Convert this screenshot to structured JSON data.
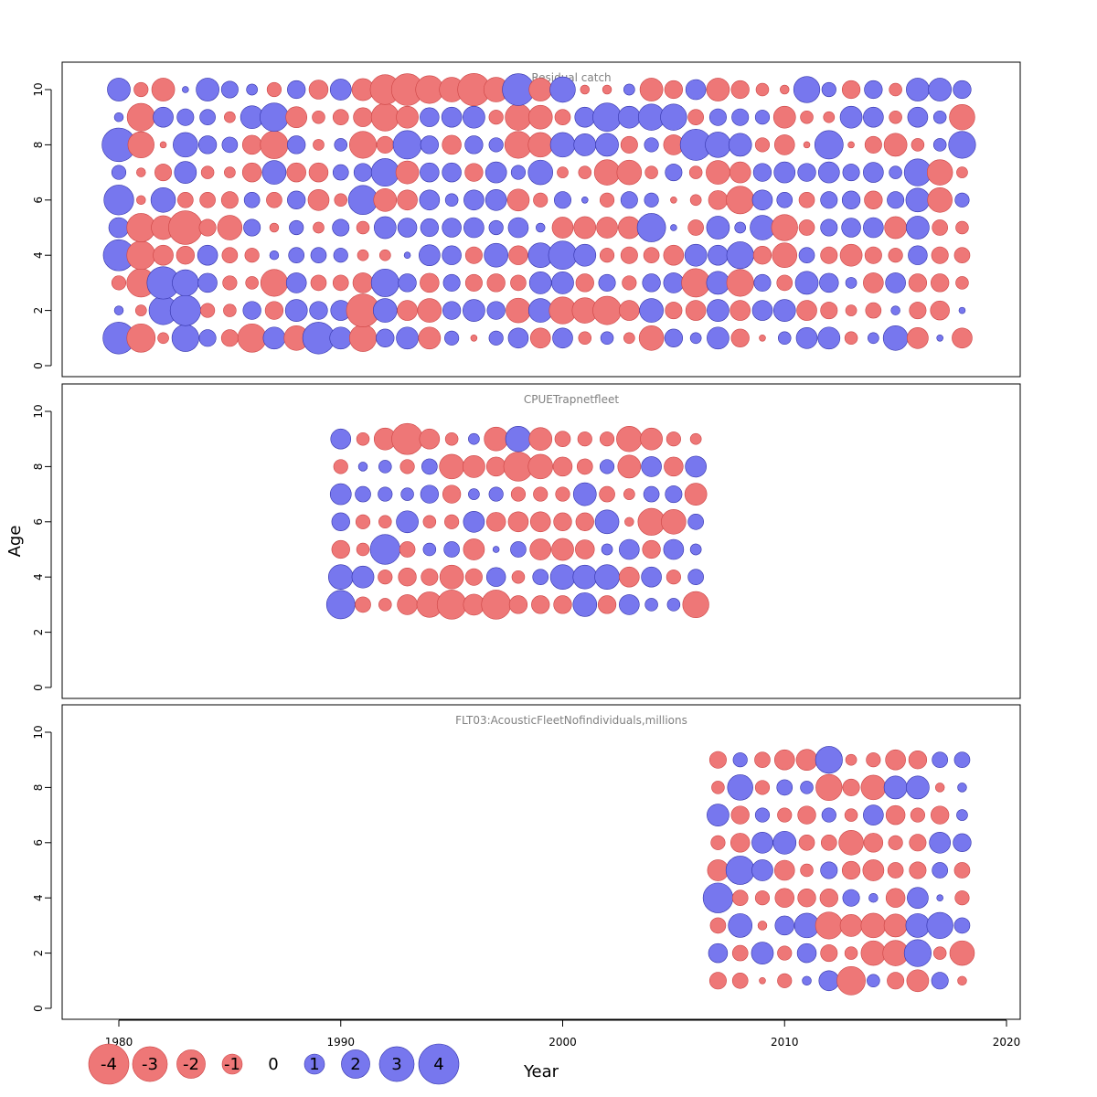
{
  "chart_data": {
    "type": "scatter",
    "subtype": "bubble-residual",
    "xlabel": "Year",
    "ylabel": "Age",
    "xlim": [
      1979,
      2020
    ],
    "ylim": [
      0,
      11
    ],
    "x_ticks": [
      1980,
      1990,
      2000,
      2010,
      2020
    ],
    "y_ticks": [
      0,
      2,
      4,
      6,
      8,
      10
    ],
    "colors": {
      "positive": "#7777ee",
      "negative": "#ee7777",
      "positive_stroke": "#3333aa",
      "negative_stroke": "#cc4444"
    },
    "legend": {
      "values": [
        -4,
        -3,
        -2,
        -1,
        0,
        1,
        2,
        3,
        4
      ],
      "labels": [
        "-4",
        "-3",
        "-2",
        "-1",
        "0",
        "1",
        "2",
        "3",
        "4"
      ],
      "placement": "bottom-left"
    },
    "panels": [
      {
        "name": "Residual catch",
        "years": [
          1980,
          1981,
          1982,
          1983,
          1984,
          1985,
          1986,
          1987,
          1988,
          1989,
          1990,
          1991,
          1992,
          1993,
          1994,
          1995,
          1996,
          1997,
          1998,
          1999,
          2000,
          2001,
          2002,
          2003,
          2004,
          2005,
          2006,
          2007,
          2008,
          2009,
          2010,
          2011,
          2012,
          2013,
          2014,
          2015,
          2016,
          2017,
          2018
        ],
        "ages": [
          1,
          2,
          3,
          4,
          5,
          6,
          7,
          8,
          9,
          10
        ],
        "residuals": [
          [
            2.5,
            -2,
            -0.3,
            1.8,
            0.7,
            -0.7,
            -2,
            1.2,
            -1.5,
            2.5,
            1.2,
            -1.8,
            0.8,
            1.2,
            -1.2,
            0.5,
            -0.1,
            0.5,
            1,
            -1,
            1,
            -0.4,
            0.4,
            -0.3,
            -1.5,
            0.8,
            0.3,
            1.2,
            -0.8,
            -0.1,
            0.4,
            1.1,
            1.2,
            -0.4,
            0.3,
            1.5,
            -1.1,
            0.1,
            -1
          ],
          [
            0.2,
            -0.3,
            2,
            2.3,
            -0.5,
            -0.4,
            0.8,
            -0.8,
            1.2,
            0.8,
            1,
            -2.7,
            1.4,
            -1,
            -1.4,
            0.8,
            1.2,
            0.8,
            -1.5,
            1.4,
            -1.8,
            -1.6,
            -2,
            -1,
            1.4,
            -0.7,
            -1,
            1.2,
            -1,
            1,
            1.2,
            -1,
            -0.7,
            -0.3,
            -0.6,
            0.2,
            -0.7,
            -0.9,
            0.1
          ],
          [
            -0.5,
            -2,
            2.6,
            1.7,
            0.9,
            -0.5,
            -0.4,
            -1.8,
            1,
            -0.6,
            -0.6,
            -1,
            1.9,
            0.8,
            -0.9,
            0.7,
            -0.7,
            -0.8,
            -0.6,
            1.2,
            1.2,
            -0.8,
            0.7,
            -0.5,
            0.8,
            1,
            -2,
            1.3,
            -1.8,
            0.7,
            -0.6,
            1.3,
            0.9,
            0.3,
            -1,
            1,
            -0.8,
            -0.8,
            -0.4
          ],
          [
            2.4,
            -2,
            -1,
            -0.8,
            1,
            -0.6,
            -0.5,
            0.2,
            0.6,
            0.6,
            0.5,
            -0.3,
            -0.3,
            0.1,
            1.1,
            0.9,
            -0.7,
            1.4,
            -0.9,
            1.5,
            2,
            1.2,
            -0.5,
            -0.7,
            -0.6,
            -1,
            1.2,
            1,
            1.8,
            -0.8,
            -1.5,
            0.6,
            -0.7,
            -1.2,
            -0.7,
            -0.5,
            0.9,
            -0.7,
            -0.6
          ],
          [
            1,
            -2,
            -1.4,
            -2.8,
            -0.7,
            -1.5,
            0.7,
            -0.2,
            0.5,
            -0.3,
            0.7,
            -0.4,
            1.2,
            0.9,
            0.8,
            0.9,
            1,
            0.5,
            1,
            0.2,
            -1.1,
            -1.2,
            -1.1,
            -1.2,
            2,
            0.1,
            -0.6,
            1.3,
            0.3,
            1.5,
            -1.7,
            -0.6,
            0.7,
            0.9,
            1,
            -1.2,
            1.3,
            -0.6,
            -0.4
          ],
          [
            2.2,
            -0.2,
            1.5,
            -0.6,
            -0.6,
            -0.7,
            0.6,
            -0.6,
            0.8,
            -1.1,
            -0.4,
            2.1,
            -1.3,
            -1,
            1,
            0.4,
            1,
            1.1,
            -1.2,
            -0.5,
            0.7,
            0.1,
            -0.5,
            0.7,
            0.5,
            -0.1,
            -0.3,
            -0.9,
            -1.9,
            1,
            0.6,
            -0.6,
            0.7,
            0.8,
            -0.8,
            0.7,
            1.4,
            -1.5,
            0.5
          ],
          [
            0.5,
            -0.2,
            -0.7,
            1.2,
            -0.4,
            -0.3,
            -0.9,
            1.4,
            -0.9,
            -0.9,
            0.6,
            0.8,
            1.9,
            -1.3,
            0.9,
            0.9,
            -0.8,
            1.1,
            0.5,
            1.5,
            -0.3,
            -0.4,
            -1.6,
            -1.5,
            -0.4,
            0.7,
            -0.4,
            -1.4,
            -1.1,
            0.8,
            1.1,
            0.8,
            1.1,
            0.7,
            1,
            0.4,
            1.8,
            -1.6,
            -0.3
          ],
          [
            2.8,
            -1.7,
            -0.1,
            1.5,
            0.8,
            0.6,
            -0.9,
            -1.9,
            0.8,
            -0.3,
            0.4,
            -1.8,
            -0.7,
            2,
            0.8,
            -0.9,
            0.8,
            0.5,
            -1.8,
            -1.5,
            1.5,
            1.2,
            1.3,
            -0.7,
            0.5,
            -1,
            2.4,
            1.6,
            1.3,
            -0.5,
            -1,
            -0.1,
            2,
            -0.1,
            -0.7,
            -1.3,
            -0.4,
            0.4,
            1.8
          ],
          [
            0.2,
            -1.9,
            1,
            0.7,
            0.6,
            -0.3,
            1.3,
            2,
            -1.1,
            -0.4,
            -0.6,
            -0.9,
            -1.9,
            -1.2,
            0.9,
            1,
            1.2,
            -0.5,
            -1.7,
            -1.4,
            -0.6,
            1,
            2,
            1.2,
            1.7,
            1.7,
            -0.6,
            0.7,
            0.7,
            0.5,
            -1.2,
            -0.4,
            -0.3,
            1.2,
            1,
            -0.4,
            1,
            0.4,
            -1.6
          ],
          [
            1.3,
            -0.5,
            -1.3,
            0.1,
            1.3,
            0.7,
            0.3,
            -0.5,
            0.8,
            -0.9,
            1.1,
            -1.2,
            -2.2,
            -2.5,
            -1.9,
            -1.5,
            -2.6,
            -1.5,
            2.5,
            -1.3,
            1.6,
            -0.2,
            -0.2,
            0.3,
            -1.3,
            -0.8,
            1,
            -1.3,
            -0.8,
            -0.4,
            -0.2,
            1.7,
            0.5,
            -0.8,
            0.8,
            -0.4,
            1.3,
            1.3,
            0.8
          ]
        ]
      },
      {
        "name": "CPUETrapnetfleet",
        "years": [
          1990,
          1991,
          1992,
          1993,
          1994,
          1995,
          1996,
          1997,
          1998,
          1999,
          2000,
          2001,
          2002,
          2003,
          2004,
          2005,
          2006
        ],
        "ages": [
          3,
          4,
          5,
          6,
          7,
          8,
          9
        ],
        "residuals": [
          [
            2,
            -0.6,
            -0.4,
            -1,
            -1.6,
            -2.1,
            -1.1,
            -2.1,
            -0.8,
            -0.8,
            -0.8,
            1.4,
            -0.8,
            1,
            0.4,
            0.4,
            -1.7
          ],
          [
            1.5,
            1.2,
            -0.5,
            -0.8,
            -0.7,
            -1.4,
            -0.7,
            0.9,
            -0.4,
            0.6,
            1.5,
            1.4,
            1.5,
            -1,
            1,
            -0.5,
            0.6
          ],
          [
            -0.8,
            -0.4,
            2.2,
            -0.6,
            0.4,
            0.6,
            -1.1,
            0.1,
            0.6,
            -1.1,
            -1.2,
            -0.9,
            0.3,
            1,
            -0.8,
            1,
            0.3
          ],
          [
            0.8,
            -0.5,
            -0.4,
            1.2,
            -0.4,
            -0.5,
            1.1,
            -0.9,
            -1,
            -1,
            -0.8,
            -0.8,
            1.4,
            -0.2,
            -1.8,
            -1.5,
            0.6
          ],
          [
            1.1,
            0.6,
            0.5,
            0.4,
            0.8,
            -0.8,
            0.3,
            0.5,
            -0.5,
            -0.5,
            -0.5,
            1.3,
            -0.6,
            -0.3,
            0.6,
            0.7,
            -1.2
          ],
          [
            -0.5,
            0.2,
            0.4,
            -0.5,
            0.6,
            -1.5,
            -1.2,
            -0.9,
            -2.1,
            -1.5,
            -0.9,
            -0.6,
            0.5,
            -1.3,
            1,
            -0.9,
            1.1
          ],
          [
            1,
            -0.4,
            -1.2,
            -2.4,
            -1,
            -0.4,
            0.3,
            -1.4,
            1.6,
            -1.3,
            -0.6,
            -0.5,
            -0.5,
            -1.6,
            -1.2,
            -0.5,
            -0.3
          ]
        ]
      },
      {
        "name": "FLT03:AcousticFleetNofindividuals,millions",
        "years": [
          2007,
          2008,
          2009,
          2010,
          2011,
          2012,
          2013,
          2014,
          2015,
          2016,
          2017,
          2018
        ],
        "ages": [
          1,
          2,
          3,
          4,
          5,
          6,
          7,
          8,
          9
        ],
        "residuals": [
          [
            -0.7,
            -0.6,
            -0.1,
            -0.5,
            0.2,
            1,
            -2,
            0.4,
            -0.7,
            -1.2,
            0.7,
            -0.2
          ],
          [
            0.9,
            -0.6,
            1.2,
            -0.5,
            0.9,
            -0.7,
            -0.4,
            -1.5,
            -1.6,
            1.8,
            -0.4,
            -1.5
          ],
          [
            -0.6,
            1.4,
            -0.2,
            0.9,
            1.5,
            -1.8,
            -1.2,
            -1.5,
            -1.3,
            1.4,
            1.7,
            0.6
          ],
          [
            2.2,
            -0.6,
            -0.5,
            -0.9,
            -0.8,
            -0.8,
            0.7,
            0.2,
            -0.9,
            1.1,
            0.1,
            -0.5
          ],
          [
            -1.1,
            2,
            1.1,
            -1,
            -0.4,
            0.7,
            -0.8,
            -1.1,
            -0.6,
            -0.7,
            0.6,
            -0.6
          ],
          [
            -0.5,
            -0.9,
            1.1,
            1.3,
            -0.6,
            -0.6,
            -1.5,
            -0.9,
            -0.5,
            -0.7,
            1.1,
            0.8
          ],
          [
            1.2,
            -0.8,
            0.5,
            -0.5,
            -0.8,
            0.5,
            -0.4,
            1,
            -0.9,
            -0.5,
            -0.8,
            0.3
          ],
          [
            -0.4,
            1.6,
            -0.5,
            0.6,
            0.4,
            -1.7,
            -0.7,
            -1.5,
            1.3,
            1.3,
            -0.2,
            0.2
          ],
          [
            -0.7,
            0.5,
            -0.6,
            -1,
            -1.1,
            1.8,
            -0.3,
            -0.5,
            -1,
            -0.8,
            0.6,
            0.6
          ]
        ]
      }
    ]
  }
}
